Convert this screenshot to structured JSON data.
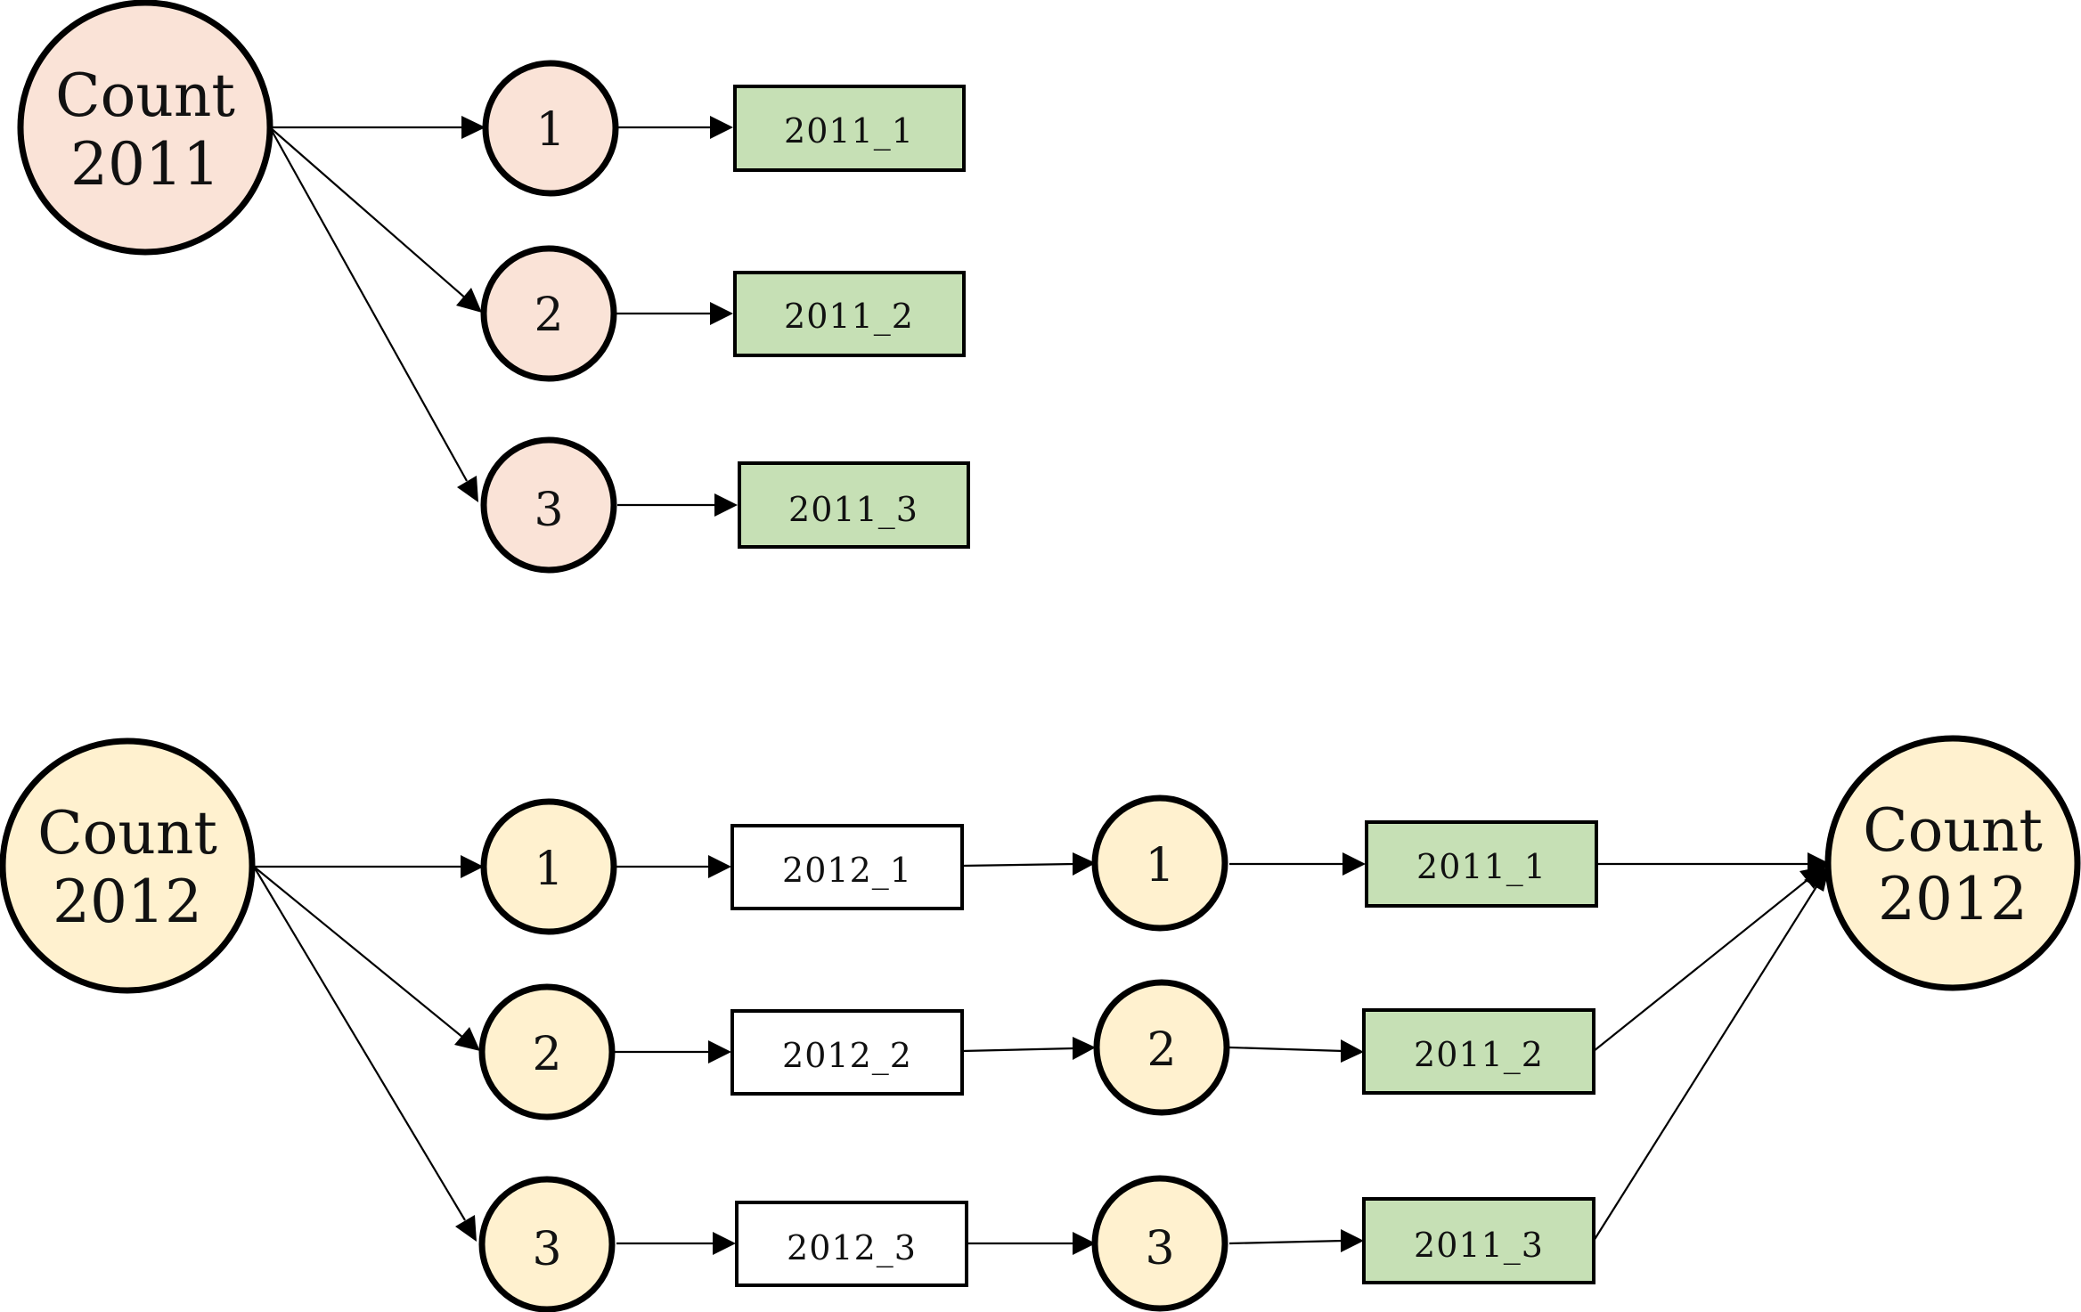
{
  "colors": {
    "node_2011": "#fae3d7",
    "node_2012": "#fff1cf",
    "box_green": "#c6e0b5",
    "box_white": "#ffffff",
    "stroke": "#000000"
  },
  "top_diagram": {
    "source": {
      "line1": "Count",
      "line2": "2011"
    },
    "branches": [
      {
        "node": "1",
        "output": "2011_1"
      },
      {
        "node": "2",
        "output": "2011_2"
      },
      {
        "node": "3",
        "output": "2011_3"
      }
    ]
  },
  "bottom_diagram": {
    "source": {
      "line1": "Count",
      "line2": "2012"
    },
    "branches": [
      {
        "node": "1",
        "intermediate": "2012_1",
        "node2": "1",
        "output": "2011_1"
      },
      {
        "node": "2",
        "intermediate": "2012_2",
        "node2": "2",
        "output": "2011_2"
      },
      {
        "node": "3",
        "intermediate": "2012_3",
        "node2": "3",
        "output": "2011_3"
      }
    ],
    "target": {
      "line1": "Count",
      "line2": "2012"
    }
  }
}
